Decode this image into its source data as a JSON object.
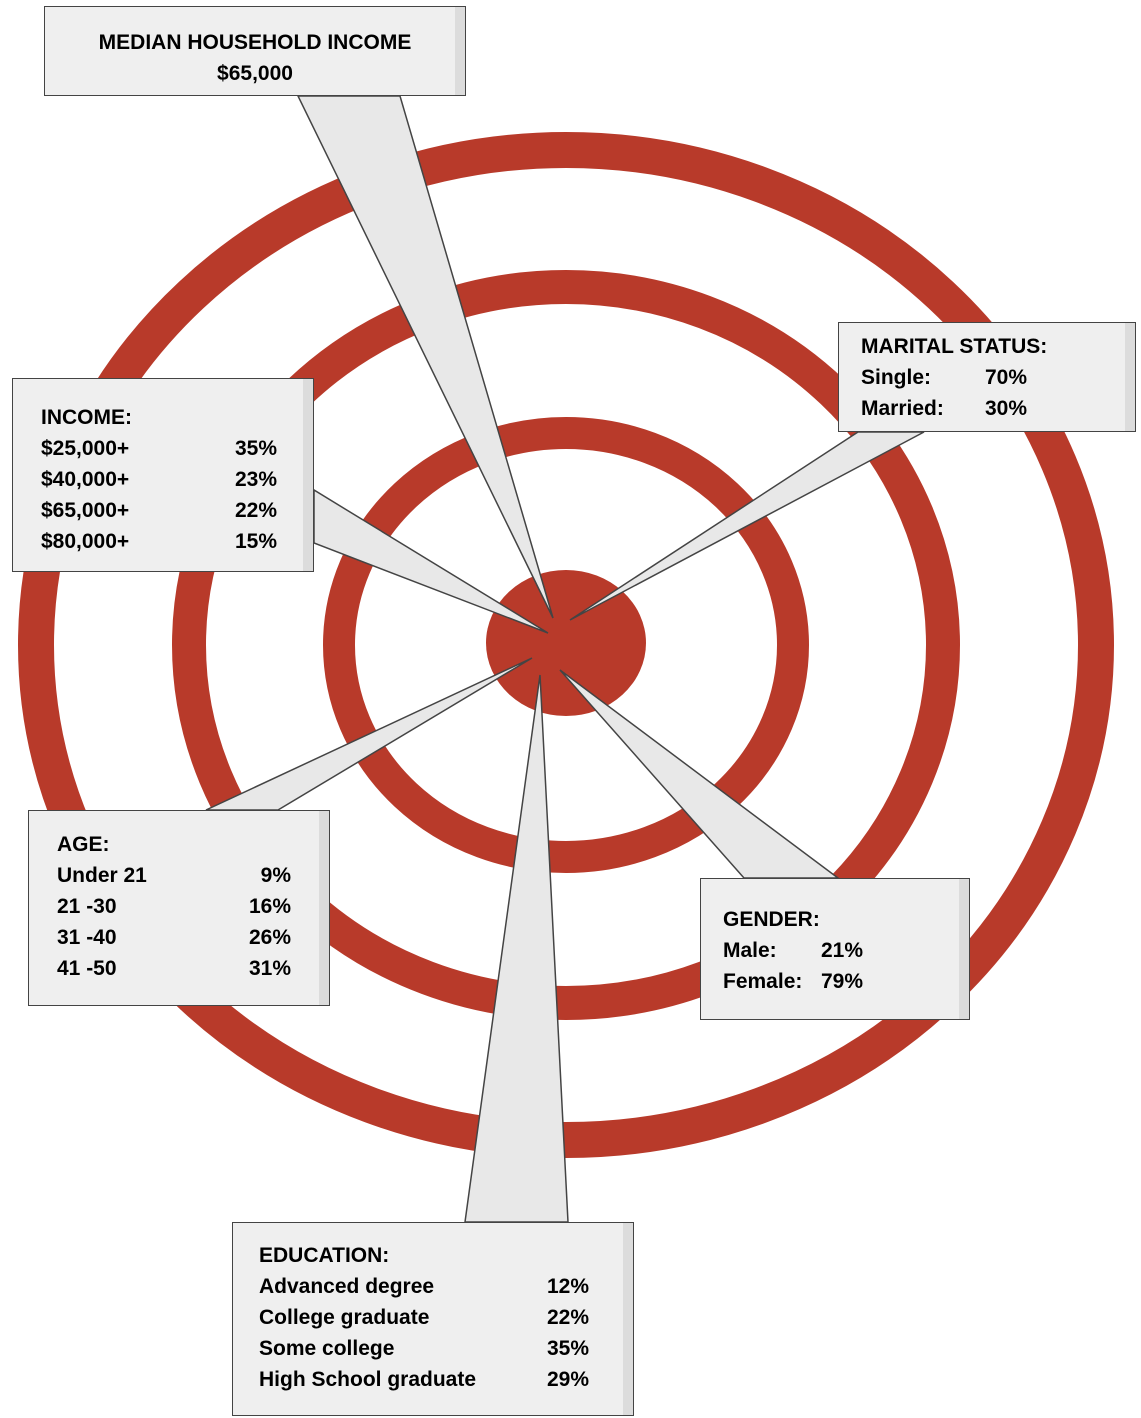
{
  "colors": {
    "ring": "#b83a2a",
    "callout_fill": "#efefef",
    "callout_border": "#444444"
  },
  "median": {
    "title": "MEDIAN HOUSEHOLD INCOME",
    "value": "$65,000"
  },
  "marital": {
    "title": "MARITAL STATUS:",
    "rows": [
      {
        "label": "Single:",
        "value": "70%"
      },
      {
        "label": "Married:",
        "value": "30%"
      }
    ]
  },
  "income": {
    "title": "INCOME:",
    "rows": [
      {
        "label": "$25,000+",
        "value": "35%"
      },
      {
        "label": "$40,000+",
        "value": "23%"
      },
      {
        "label": "$65,000+",
        "value": "22%"
      },
      {
        "label": "$80,000+",
        "value": "15%"
      }
    ]
  },
  "age": {
    "title": "AGE:",
    "rows": [
      {
        "label": "Under 21",
        "value": "9%"
      },
      {
        "label": "21 -30",
        "value": "16%"
      },
      {
        "label": "31 -40",
        "value": "26%"
      },
      {
        "label": "41 -50",
        "value": "31%"
      }
    ]
  },
  "gender": {
    "title": "GENDER:",
    "rows": [
      {
        "label": "Male:",
        "value": "21%"
      },
      {
        "label": "Female:",
        "value": "79%"
      }
    ]
  },
  "education": {
    "title": "EDUCATION:",
    "rows": [
      {
        "label": "Advanced degree",
        "value": "12%"
      },
      {
        "label": "College graduate",
        "value": "22%"
      },
      {
        "label": "Some college",
        "value": "35%"
      },
      {
        "label": "High School graduate",
        "value": "29%"
      }
    ]
  }
}
